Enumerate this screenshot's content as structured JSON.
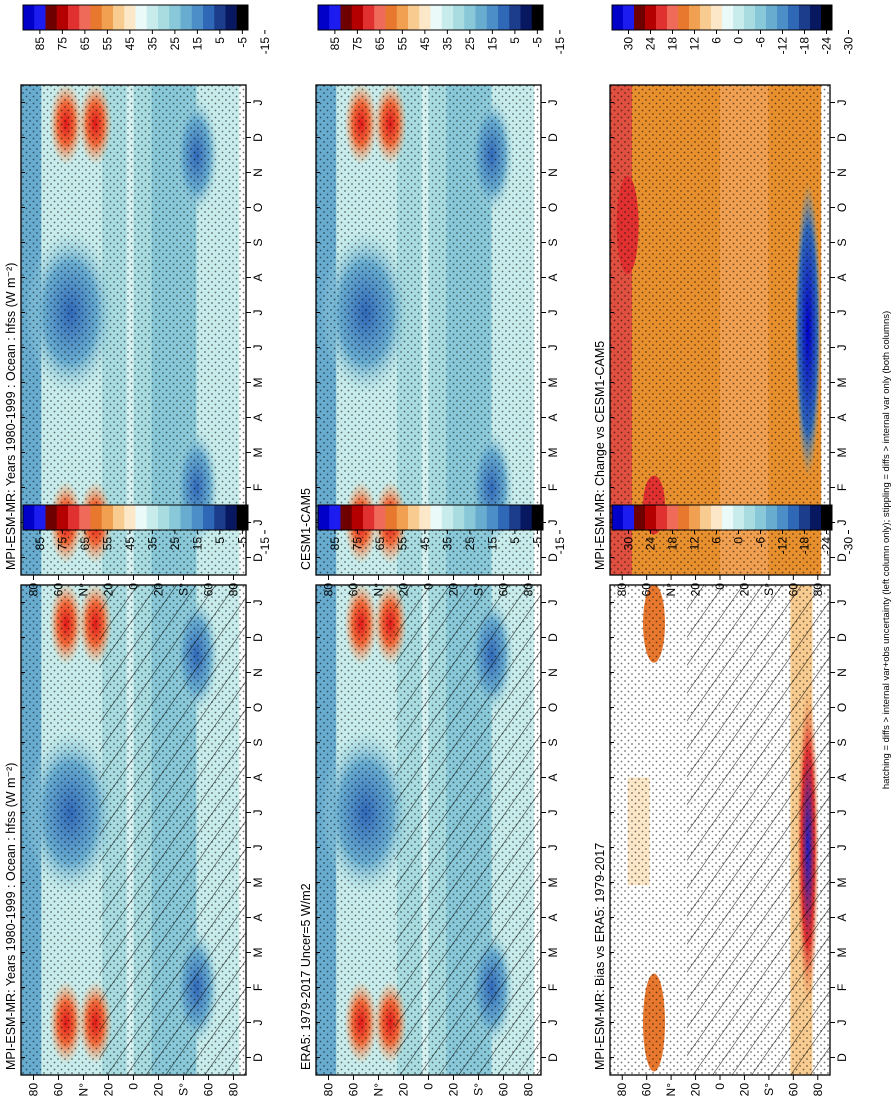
{
  "figure_note": "hatching = diffs > internal var+obs uncertainty (left column only); stippling = diffs > internal var only (both columns)",
  "months": [
    "D",
    "J",
    "F",
    "M",
    "A",
    "M",
    "J",
    "J",
    "A",
    "S",
    "O",
    "N",
    "D",
    "J"
  ],
  "lat_ticks": [
    "80",
    "60",
    "N°",
    "20",
    "0",
    "20",
    "S°",
    "60",
    "80"
  ],
  "cbar_levels_abs": [
    "85",
    "75",
    "65",
    "55",
    "45",
    "35",
    "25",
    "15",
    "5",
    "-5",
    "-15"
  ],
  "cbar_levels_diff": [
    "30",
    "24",
    "18",
    "12",
    "6",
    "0",
    "-6",
    "-12",
    "-18",
    "-24",
    "-30"
  ],
  "colors": {
    "abs": [
      "#0000c8",
      "#1c1cf0",
      "#6e0000",
      "#b40000",
      "#e03030",
      "#f06a5a",
      "#e8782e",
      "#f0a050",
      "#f8cc90",
      "#fce8c8",
      "#eafaf8",
      "#c8ecec",
      "#a8dce0",
      "#88c8d8",
      "#68acd0",
      "#4c8ec8",
      "#3068b8",
      "#1c3c8c",
      "#081860",
      "#000000"
    ],
    "diff": [
      "#0000c8",
      "#1c1cf0",
      "#6e0000",
      "#b40000",
      "#e03030",
      "#f06a5a",
      "#e8782e",
      "#f0a050",
      "#f8cc90",
      "#fce8c8",
      "#eafaf8",
      "#c8ecec",
      "#a8dce0",
      "#88c8d8",
      "#68acd0",
      "#4c8ec8",
      "#3068b8",
      "#1c3c8c",
      "#081860",
      "#000000"
    ]
  },
  "chart_data": [
    {
      "type": "heatmap",
      "title": "MPI-ESM-MR: Years 1980-1999 : Ocean : hfss (W m⁻²)",
      "field": "hfss",
      "scale": "abs",
      "hatching": true,
      "stippling": true,
      "x": [
        "D",
        "J",
        "F",
        "M",
        "A",
        "M",
        "J",
        "J",
        "A",
        "S",
        "O",
        "N",
        "D",
        "J"
      ],
      "y": [
        "80",
        "60",
        "N°",
        "20",
        "0",
        "20",
        "S°",
        "60",
        "80"
      ]
    },
    {
      "type": "heatmap",
      "title": "MPI-ESM-MR: Years 1980-1999 : Ocean : hfss (W m⁻²)",
      "field": "hfss",
      "scale": "abs",
      "hatching": false,
      "stippling": true,
      "x": [
        "D",
        "J",
        "F",
        "M",
        "A",
        "M",
        "J",
        "J",
        "A",
        "S",
        "O",
        "N",
        "D",
        "J"
      ],
      "y": [
        "80",
        "60",
        "N°",
        "20",
        "0",
        "20",
        "S°",
        "60",
        "80"
      ]
    },
    {
      "type": "heatmap",
      "title": "ERA5: 1979-2017 Uncer=5 W/m2",
      "field": "hfss",
      "scale": "abs",
      "hatching": true,
      "stippling": true,
      "x": [
        "D",
        "J",
        "F",
        "M",
        "A",
        "M",
        "J",
        "J",
        "A",
        "S",
        "O",
        "N",
        "D",
        "J"
      ],
      "y": [
        "80",
        "60",
        "N°",
        "20",
        "0",
        "20",
        "S°",
        "60",
        "80"
      ]
    },
    {
      "type": "heatmap",
      "title": "CESM1-CAM5",
      "field": "hfss",
      "scale": "abs",
      "hatching": false,
      "stippling": true,
      "x": [
        "D",
        "J",
        "F",
        "M",
        "A",
        "M",
        "J",
        "J",
        "A",
        "S",
        "O",
        "N",
        "D",
        "J"
      ],
      "y": [
        "80",
        "60",
        "N°",
        "20",
        "0",
        "20",
        "S°",
        "60",
        "80"
      ]
    },
    {
      "type": "heatmap",
      "title": "MPI-ESM-MR: Bias vs ERA5: 1979-2017",
      "field": "hfss bias",
      "scale": "diff",
      "hatching": true,
      "stippling": true,
      "x": [
        "D",
        "J",
        "F",
        "M",
        "A",
        "M",
        "J",
        "J",
        "A",
        "S",
        "O",
        "N",
        "D",
        "J"
      ],
      "y": [
        "80",
        "60",
        "N°",
        "20",
        "0",
        "20",
        "S°",
        "60",
        "80"
      ]
    },
    {
      "type": "heatmap",
      "title": "MPI-ESM-MR: Change vs CESM1-CAM5",
      "field": "hfss change",
      "scale": "diff",
      "hatching": false,
      "stippling": true,
      "x": [
        "D",
        "J",
        "F",
        "M",
        "A",
        "M",
        "J",
        "J",
        "A",
        "S",
        "O",
        "N",
        "D",
        "J"
      ],
      "y": [
        "80",
        "60",
        "N°",
        "20",
        "0",
        "20",
        "S°",
        "60",
        "80"
      ]
    }
  ]
}
